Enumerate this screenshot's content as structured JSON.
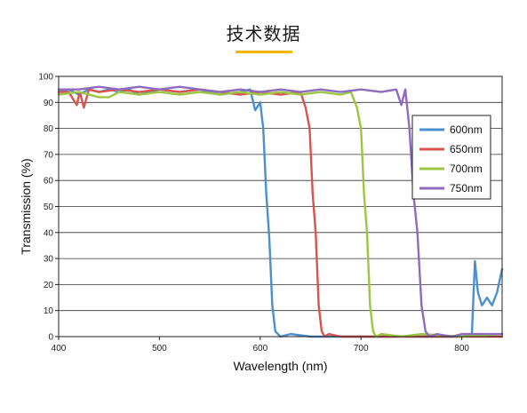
{
  "header": {
    "title": "技术数据",
    "underline_color": "#f2b600"
  },
  "chart_data": {
    "type": "line",
    "title": "",
    "xlabel": "Wavelength (nm)",
    "ylabel": "Transmission (%)",
    "xlim": [
      400,
      840
    ],
    "ylim": [
      0,
      100
    ],
    "xticks": [
      400,
      500,
      600,
      700,
      800
    ],
    "yticks": [
      0,
      10,
      20,
      30,
      40,
      50,
      60,
      70,
      80,
      90,
      100
    ],
    "grid": "horizontal",
    "legend": "right",
    "series": [
      {
        "name": "600nm",
        "color": "#4a90d0",
        "x": [
          400,
          410,
          420,
          430,
          440,
          450,
          460,
          470,
          480,
          490,
          500,
          520,
          540,
          560,
          580,
          590,
          595,
          600,
          603,
          606,
          609,
          612,
          615,
          620,
          630,
          650,
          700,
          750,
          800,
          810,
          813,
          816,
          820,
          825,
          830,
          835,
          840
        ],
        "y": [
          94,
          95,
          93,
          95,
          94,
          95,
          94,
          95,
          93,
          94,
          95,
          94,
          95,
          93,
          94,
          95,
          87,
          90,
          80,
          55,
          38,
          12,
          2,
          0,
          1,
          0,
          0,
          0,
          0,
          1,
          29,
          17,
          12,
          15,
          12,
          17,
          26
        ]
      },
      {
        "name": "650nm",
        "color": "#d9534f",
        "x": [
          400,
          410,
          418,
          421,
          425,
          430,
          440,
          460,
          480,
          500,
          520,
          540,
          560,
          580,
          600,
          620,
          640,
          645,
          649,
          652,
          655,
          658,
          661,
          664,
          668,
          680,
          700,
          750,
          800,
          840
        ],
        "y": [
          94,
          94,
          89,
          94,
          88,
          95,
          94,
          95,
          94,
          95,
          94,
          95,
          94,
          93,
          94,
          93,
          94,
          88,
          80,
          55,
          40,
          12,
          2,
          0,
          1,
          0,
          0,
          0,
          0,
          0
        ]
      },
      {
        "name": "700nm",
        "color": "#9cc642",
        "x": [
          400,
          420,
          440,
          450,
          455,
          460,
          480,
          500,
          520,
          540,
          560,
          580,
          600,
          620,
          640,
          660,
          680,
          690,
          696,
          700,
          703,
          706,
          709,
          712,
          715,
          720,
          740,
          760,
          800,
          840
        ],
        "y": [
          93,
          94,
          92,
          92,
          93,
          94,
          93,
          94,
          93,
          94,
          93,
          94,
          93,
          94,
          93,
          94,
          93,
          94,
          88,
          80,
          55,
          40,
          12,
          2,
          0,
          1,
          0,
          1,
          0,
          1
        ]
      },
      {
        "name": "750nm",
        "color": "#8e6bbf",
        "x": [
          400,
          420,
          440,
          460,
          480,
          500,
          520,
          540,
          560,
          580,
          600,
          620,
          640,
          660,
          680,
          700,
          720,
          735,
          740,
          744,
          748,
          752,
          756,
          760,
          764,
          768,
          775,
          790,
          800,
          840
        ],
        "y": [
          95,
          95,
          96,
          95,
          96,
          95,
          96,
          95,
          94,
          95,
          94,
          95,
          94,
          95,
          94,
          95,
          94,
          95,
          89,
          95,
          80,
          55,
          40,
          12,
          2,
          0,
          1,
          0,
          1,
          1
        ]
      }
    ]
  }
}
